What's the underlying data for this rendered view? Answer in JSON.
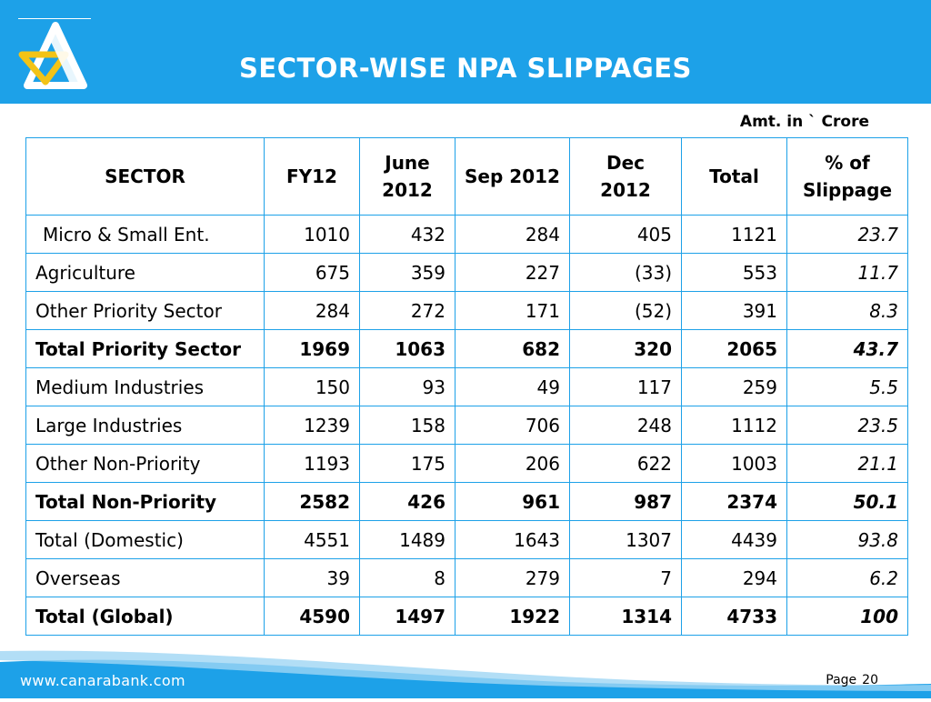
{
  "header": {
    "title": "SECTOR-WISE NPA SLIPPAGES",
    "accent_color": "#1da1e8",
    "logo_icon": "canara-bank-logo-icon"
  },
  "units_note": "Amt. in ` Crore",
  "table": {
    "columns": [
      "SECTOR",
      "FY12",
      "June\n2012",
      "Sep 2012",
      "Dec 2012",
      "Total",
      "% of\nSlippage"
    ],
    "rows": [
      {
        "sector": "Micro & Small Ent.",
        "values": [
          "1010",
          "432",
          "284",
          "405",
          "1121",
          "23.7"
        ],
        "bold": false,
        "indent": true
      },
      {
        "sector": "Agriculture",
        "values": [
          "675",
          "359",
          "227",
          "(33)",
          "553",
          "11.7"
        ],
        "bold": false
      },
      {
        "sector": "Other Priority Sector",
        "values": [
          "284",
          "272",
          "171",
          "(52)",
          "391",
          "8.3"
        ],
        "bold": false
      },
      {
        "sector": "Total Priority Sector",
        "values": [
          "1969",
          "1063",
          "682",
          "320",
          "2065",
          "43.7"
        ],
        "bold": true
      },
      {
        "sector": "Medium Industries",
        "values": [
          "150",
          "93",
          "49",
          "117",
          "259",
          "5.5"
        ],
        "bold": false
      },
      {
        "sector": "Large Industries",
        "values": [
          "1239",
          "158",
          "706",
          "248",
          "1112",
          "23.5"
        ],
        "bold": false
      },
      {
        "sector": "Other Non-Priority",
        "values": [
          "1193",
          "175",
          "206",
          "622",
          "1003",
          "21.1"
        ],
        "bold": false
      },
      {
        "sector": "Total Non-Priority",
        "values": [
          "2582",
          "426",
          "961",
          "987",
          "2374",
          "50.1"
        ],
        "bold": true
      },
      {
        "sector": "Total (Domestic)",
        "values": [
          "4551",
          "1489",
          "1643",
          "1307",
          "4439",
          "93.8"
        ],
        "bold": false
      },
      {
        "sector": "Overseas",
        "values": [
          "39",
          "8",
          "279",
          "7",
          "294",
          "6.2"
        ],
        "bold": false
      },
      {
        "sector": "Total (Global)",
        "values": [
          "4590",
          "1497",
          "1922",
          "1314",
          "4733",
          "100"
        ],
        "bold": true
      }
    ]
  },
  "footer": {
    "url": "www.canarabank.com",
    "page_label": "Page",
    "page_number": "20"
  }
}
